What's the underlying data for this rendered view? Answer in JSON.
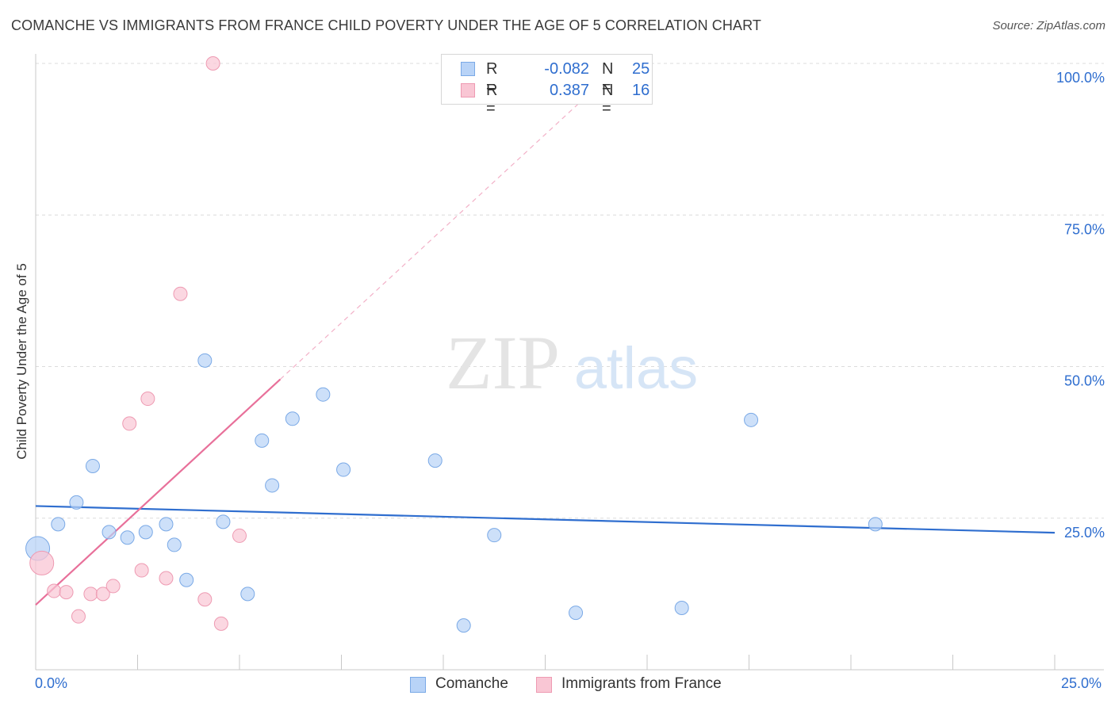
{
  "title": "COMANCHE VS IMMIGRANTS FROM FRANCE CHILD POVERTY UNDER THE AGE OF 5 CORRELATION CHART",
  "source": "Source: ZipAtlas.com",
  "watermark": {
    "zip": "ZIP",
    "atlas": "atlas"
  },
  "legend": {
    "rows": [
      {
        "r_label": "R =",
        "r_value": "-0.082",
        "n_label": "N =",
        "n_value": "25",
        "color": "#b8d3f7",
        "border": "#7aa9e6"
      },
      {
        "r_label": "R =",
        "r_value": "0.387",
        "n_label": "N =",
        "n_value": "16",
        "color": "#f9c6d4",
        "border": "#ee9ab2"
      }
    ]
  },
  "bottom_legend": [
    {
      "label": "Comanche",
      "color": "#b8d3f7",
      "border": "#7aa9e6"
    },
    {
      "label": "Immigrants from France",
      "color": "#f9c6d4",
      "border": "#ee9ab2"
    }
  ],
  "x_axis": {
    "min_label": "0.0%",
    "max_label": "25.0%"
  },
  "chart_data": {
    "type": "scatter",
    "title": "COMANCHE VS IMMIGRANTS FROM FRANCE CHILD POVERTY UNDER THE AGE OF 5 CORRELATION CHART",
    "xlabel": "",
    "ylabel": "Child Poverty Under the Age of 5",
    "xlim": [
      0,
      25
    ],
    "ylim": [
      0,
      100
    ],
    "y_ticks": [
      {
        "value": 25,
        "label": "25.0%"
      },
      {
        "value": 50,
        "label": "50.0%"
      },
      {
        "value": 75,
        "label": "75.0%"
      },
      {
        "value": 100,
        "label": "100.0%"
      }
    ],
    "grid": true,
    "series": [
      {
        "name": "Comanche",
        "color": "#b8d3f7",
        "border": "#7aa9e6",
        "line_color": "#2f6ecf",
        "trend": {
          "x": [
            0,
            25
          ],
          "y": [
            27.0,
            22.6
          ]
        },
        "points": [
          {
            "x": 0.05,
            "y": 20.0,
            "big": true
          },
          {
            "x": 0.55,
            "y": 24.0
          },
          {
            "x": 1.0,
            "y": 27.6
          },
          {
            "x": 1.4,
            "y": 33.6
          },
          {
            "x": 1.8,
            "y": 22.7
          },
          {
            "x": 2.25,
            "y": 21.8
          },
          {
            "x": 2.7,
            "y": 22.7
          },
          {
            "x": 3.2,
            "y": 24.0
          },
          {
            "x": 3.4,
            "y": 20.6
          },
          {
            "x": 3.7,
            "y": 14.8
          },
          {
            "x": 4.15,
            "y": 51.0
          },
          {
            "x": 4.6,
            "y": 24.4
          },
          {
            "x": 5.2,
            "y": 12.5
          },
          {
            "x": 5.55,
            "y": 37.8
          },
          {
            "x": 5.8,
            "y": 30.4
          },
          {
            "x": 6.3,
            "y": 41.4
          },
          {
            "x": 7.05,
            "y": 45.4
          },
          {
            "x": 7.55,
            "y": 33.0
          },
          {
            "x": 9.8,
            "y": 34.5
          },
          {
            "x": 10.5,
            "y": 7.3
          },
          {
            "x": 11.25,
            "y": 22.2
          },
          {
            "x": 13.25,
            "y": 9.4
          },
          {
            "x": 15.85,
            "y": 10.2
          },
          {
            "x": 17.55,
            "y": 41.2
          },
          {
            "x": 20.6,
            "y": 24.0
          }
        ]
      },
      {
        "name": "Immigrants from France",
        "color": "#f9c6d4",
        "border": "#ee9ab2",
        "line_color": "#e8709a",
        "trend": {
          "x": [
            0,
            6
          ],
          "y": [
            10.7,
            47.9
          ]
        },
        "trend_dashed": {
          "x": [
            6,
            13.5
          ],
          "y": [
            47.9,
            94.5
          ]
        },
        "points": [
          {
            "x": 0.15,
            "y": 17.6,
            "big": true
          },
          {
            "x": 0.45,
            "y": 13.0
          },
          {
            "x": 0.75,
            "y": 12.8
          },
          {
            "x": 1.05,
            "y": 8.8
          },
          {
            "x": 1.35,
            "y": 12.5
          },
          {
            "x": 1.65,
            "y": 12.5
          },
          {
            "x": 1.9,
            "y": 13.8
          },
          {
            "x": 2.3,
            "y": 40.6
          },
          {
            "x": 2.6,
            "y": 16.4
          },
          {
            "x": 2.75,
            "y": 44.7
          },
          {
            "x": 3.2,
            "y": 15.1
          },
          {
            "x": 3.55,
            "y": 62.0
          },
          {
            "x": 4.15,
            "y": 11.6
          },
          {
            "x": 4.35,
            "y": 100.0
          },
          {
            "x": 4.55,
            "y": 7.6
          },
          {
            "x": 5.0,
            "y": 22.1
          }
        ]
      }
    ]
  }
}
